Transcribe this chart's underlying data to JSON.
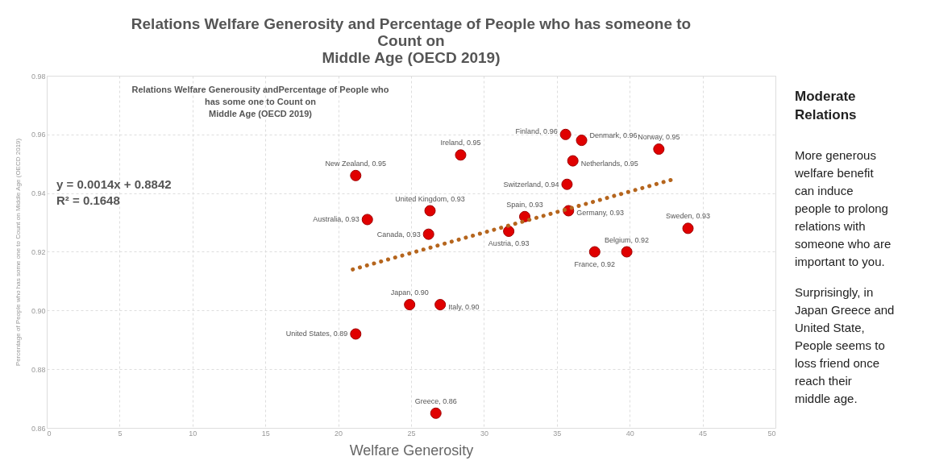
{
  "chart_data": {
    "type": "scatter",
    "title": "Relations Welfare Generosity and Percentage of People who has someone to\nCount on\nMiddle Age (OECD 2019)",
    "xlabel": "Welfare Generosity",
    "ylabel": "Percentage of People who has some one to Count on Middle Age (OECD 2019)",
    "xlim": [
      0,
      50
    ],
    "ylim": [
      0.86,
      0.98
    ],
    "xticks": [
      0,
      5,
      10,
      15,
      20,
      25,
      30,
      35,
      40,
      45,
      50
    ],
    "yticks": [
      0.86,
      0.88,
      {
        "value": 0.9,
        "label": "0.90"
      },
      0.92,
      0.94,
      0.96,
      0.98
    ],
    "grid": true,
    "series": [
      {
        "type": "scatter",
        "marker": "circle",
        "color": "#e00000",
        "x": [
          21.2,
          22.0,
          26.3,
          26.2,
          28.4,
          31.7,
          32.8,
          35.6,
          36.7,
          36.1,
          35.7,
          35.8,
          37.6,
          39.8,
          42.0,
          44.0,
          24.9,
          27.0,
          21.2,
          26.7
        ],
        "values": [
          0.946,
          0.931,
          0.934,
          0.926,
          0.953,
          0.927,
          0.932,
          0.96,
          0.958,
          0.951,
          0.943,
          0.934,
          0.92,
          0.92,
          0.955,
          0.928,
          0.902,
          0.902,
          0.892,
          0.865
        ],
        "value_labels": [
          "New Zealand, 0.95",
          "Australia, 0.93",
          "United Kingdom, 0.93",
          "Canada, 0.93",
          "Ireland, 0.95",
          "Austria, 0.93",
          "Spain, 0.93",
          "Finland, 0.96",
          "Denmark, 0.96",
          "Netherlands, 0.95",
          "Switzerland, 0.94",
          "Germany, 0.93",
          "France, 0.92",
          "Belgium, 0.92",
          "Norway, 0.95",
          "Sweden, 0.93",
          "Japan, 0.90",
          "Italy, 0.90",
          "United States, 0.89",
          "Greece, 0.86"
        ]
      },
      {
        "type": "line",
        "color": "#b5651d",
        "line_style": "dotted",
        "x": [
          21.0,
          43.2
        ],
        "values": [
          0.914,
          0.945
        ]
      }
    ],
    "annotations": [
      "Relations Welfare Generousity andPercentage of People who\nhas some one to Count on\nMiddle Age (OECD 2019)",
      "y = 0.0014x + 0.8842\nR² = 0.1648",
      "Moderate\nRelations",
      "More generous\nwelfare benefit\ncan induce\npeople to prolong\nrelations with\nsomeone who are\nimportant to you.",
      "Surprisingly, in\nJapan Greece and\nUnited State,\nPeople seems to\nloss friend once\nreach their\nmiddle age."
    ]
  }
}
